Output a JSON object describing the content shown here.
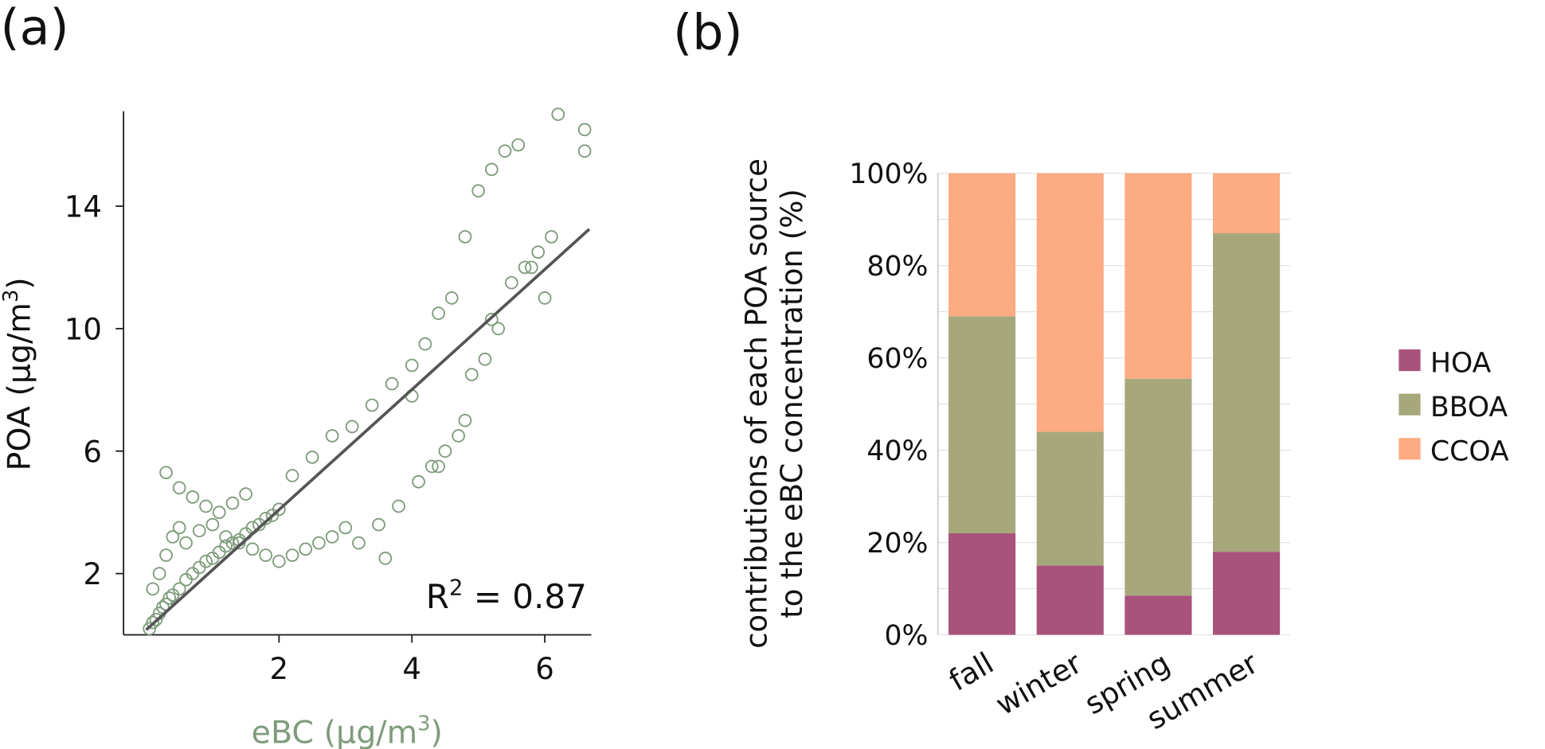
{
  "chart_data": [
    {
      "type": "scatter",
      "panel_label": "(a)",
      "xlabel": {
        "text": "eBC (μg/m",
        "sup": "3",
        "end": ")"
      },
      "ylabel": {
        "text": "POA (μg/m",
        "sup": "3",
        "end": ")"
      },
      "annotation": {
        "text": "R",
        "sup": "2",
        "end": " = 0.87"
      },
      "color": "#7f9c7c",
      "x": [
        0.05,
        0.1,
        0.15,
        0.2,
        0.25,
        0.3,
        0.35,
        0.4,
        0.5,
        0.6,
        0.7,
        0.8,
        0.9,
        1.0,
        1.1,
        1.2,
        1.3,
        1.4,
        1.5,
        1.6,
        1.7,
        1.8,
        1.9,
        2.0,
        0.1,
        0.2,
        0.3,
        0.4,
        0.5,
        0.6,
        0.8,
        1.0,
        1.2,
        1.4,
        1.6,
        1.8,
        2.0,
        2.2,
        2.4,
        2.6,
        2.8,
        3.0,
        0.3,
        0.5,
        0.7,
        0.9,
        1.1,
        1.3,
        1.5,
        2.2,
        2.5,
        2.8,
        3.1,
        3.4,
        3.7,
        4.0,
        4.2,
        4.4,
        4.6,
        4.8,
        5.0,
        5.2,
        5.4,
        5.6,
        5.8,
        6.0,
        6.2,
        6.6,
        6.6,
        3.2,
        3.5,
        3.8,
        4.1,
        4.3,
        4.5,
        4.7,
        4.9,
        5.1,
        5.3,
        5.5,
        5.7,
        5.9,
        6.1,
        3.6,
        4.0,
        4.4,
        4.8,
        5.2
      ],
      "y": [
        0.2,
        0.4,
        0.5,
        0.7,
        0.9,
        1.0,
        1.2,
        1.3,
        1.5,
        1.8,
        2.0,
        2.2,
        2.4,
        2.5,
        2.7,
        2.9,
        3.0,
        3.1,
        3.3,
        3.5,
        3.6,
        3.8,
        3.9,
        4.1,
        1.5,
        2.0,
        2.6,
        3.2,
        3.5,
        3.0,
        3.4,
        3.6,
        3.2,
        3.0,
        2.8,
        2.6,
        2.4,
        2.6,
        2.8,
        3.0,
        3.2,
        3.5,
        5.3,
        4.8,
        4.5,
        4.2,
        4.0,
        4.3,
        4.6,
        5.2,
        5.8,
        6.5,
        6.8,
        7.5,
        8.2,
        8.8,
        9.5,
        10.5,
        11.0,
        13.0,
        14.5,
        15.2,
        15.8,
        16.0,
        12.0,
        11.0,
        17.0,
        16.5,
        15.8,
        3.0,
        3.6,
        4.2,
        5.0,
        5.5,
        6.0,
        6.5,
        8.5,
        9.0,
        10.0,
        11.5,
        12.0,
        12.5,
        13.0,
        2.5,
        7.8,
        5.5,
        7.0,
        10.3
      ],
      "fit": {
        "x": [
          0,
          6.67
        ],
        "y": [
          0.16,
          13.25
        ],
        "color": "#555555"
      },
      "xlim": [
        -0.34,
        6.7
      ],
      "ylim": [
        0,
        17.1
      ],
      "xticks": [
        2,
        4,
        6
      ],
      "yticks": [
        2,
        6,
        10,
        14
      ]
    },
    {
      "type": "bar",
      "stacked": true,
      "panel_label": "(b)",
      "ylabel": [
        "contributions of each POA source",
        "to the eBC concentration (%)"
      ],
      "categories": [
        "fall",
        "winter",
        "spring",
        "summer"
      ],
      "series": [
        {
          "name": "HOA",
          "color": "#a8527c",
          "values": [
            22,
            15,
            8.5,
            18
          ]
        },
        {
          "name": "BBOA",
          "color": "#a6a87c",
          "values": [
            47,
            29,
            47,
            69
          ]
        },
        {
          "name": "CCOA",
          "color": "#fdab82",
          "values": [
            31,
            56,
            44.5,
            13
          ]
        }
      ],
      "ylim": [
        0,
        100
      ],
      "yticks": [
        {
          "value": 0,
          "label": "0%"
        },
        {
          "value": 20,
          "label": "20%"
        },
        {
          "value": 40,
          "label": "40%"
        },
        {
          "value": 60,
          "label": "60%"
        },
        {
          "value": 80,
          "label": "80%"
        },
        {
          "value": 100,
          "label": "100%"
        }
      ],
      "minor_grid": [
        10,
        30,
        50,
        70,
        90
      ],
      "grid": true,
      "legend": "right"
    }
  ]
}
